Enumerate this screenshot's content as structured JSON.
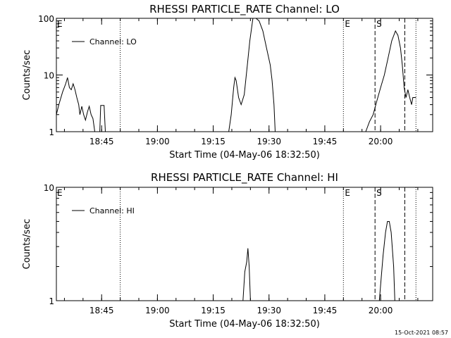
{
  "footer_timestamp": "15-Oct-2021 08:57",
  "chart_data": [
    {
      "type": "line",
      "title": "RHESSI PARTICLE_RATE Channel: LO",
      "xlabel": "Start Time (04-May-06 18:32:50)",
      "ylabel": "Counts/sec",
      "yscale": "log",
      "ylim": [
        1,
        100
      ],
      "yticks": [
        {
          "v": 1,
          "label": "1"
        },
        {
          "v": 10,
          "label": "10"
        },
        {
          "v": 100,
          "label": "100"
        }
      ],
      "xlim": [
        "18:32:50",
        "20:14:00"
      ],
      "xticks": [
        "18:45",
        "19:00",
        "19:15",
        "19:30",
        "19:45",
        "20:00"
      ],
      "legend": {
        "placement": "top-left",
        "label": "Channel: LO"
      },
      "markers": [
        {
          "time": "18:50:00",
          "style": "dotted",
          "label": ""
        },
        {
          "time": "19:50:00",
          "style": "dotted",
          "label": "E"
        },
        {
          "time": "19:58:30",
          "style": "dashed",
          "label": "S"
        },
        {
          "time": "20:06:30",
          "style": "dashed",
          "label": ""
        },
        {
          "time": "20:09:30",
          "style": "dotted",
          "label": ""
        }
      ],
      "edge_label": "E",
      "series": [
        {
          "name": "Channel: LO",
          "segments": [
            [
              [
                "18:32:50",
                2
              ],
              [
                "18:33:30",
                3
              ],
              [
                "18:34:30",
                5
              ],
              [
                "18:35:20",
                7
              ],
              [
                "18:35:50",
                9
              ],
              [
                "18:36:20",
                6
              ],
              [
                "18:36:50",
                5.5
              ],
              [
                "18:37:20",
                7
              ],
              [
                "18:37:50",
                5.5
              ],
              [
                "18:38:20",
                4
              ],
              [
                "18:38:50",
                3
              ],
              [
                "18:39:10",
                2
              ],
              [
                "18:39:40",
                2.8
              ],
              [
                "18:40:10",
                2
              ],
              [
                "18:40:40",
                1.6
              ],
              [
                "18:41:10",
                2.2
              ],
              [
                "18:41:40",
                2.8
              ],
              [
                "18:42:10",
                2
              ],
              [
                "18:42:40",
                1.7
              ],
              [
                "18:43:10",
                1
              ]
            ],
            [
              [
                "18:44:30",
                1
              ],
              [
                "18:44:45",
                2.9
              ],
              [
                "18:45:40",
                2.9
              ],
              [
                "18:46:00",
                1
              ]
            ],
            [
              [
                "19:19:10",
                1
              ],
              [
                "19:19:50",
                2
              ],
              [
                "19:20:30",
                6
              ],
              [
                "19:20:50",
                9
              ],
              [
                "19:21:10",
                8
              ],
              [
                "19:21:50",
                4
              ],
              [
                "19:22:30",
                3
              ],
              [
                "19:23:20",
                4.5
              ],
              [
                "19:24:10",
                15
              ],
              [
                "19:24:50",
                40
              ],
              [
                "19:25:40",
                100
              ],
              [
                "19:26:30",
                100
              ],
              [
                "19:27:20",
                90
              ],
              [
                "19:28:20",
                60
              ],
              [
                "19:29:20",
                30
              ],
              [
                "19:30:20",
                15
              ],
              [
                "19:30:50",
                8
              ],
              [
                "19:31:20",
                3
              ],
              [
                "19:31:40",
                1
              ]
            ],
            [
              [
                "19:56:00",
                1
              ],
              [
                "19:57:00",
                1.5
              ],
              [
                "19:58:00",
                2
              ],
              [
                "19:59:00",
                3.5
              ],
              [
                "20:00:00",
                6
              ],
              [
                "20:01:00",
                10
              ],
              [
                "20:02:00",
                20
              ],
              [
                "20:03:00",
                40
              ],
              [
                "20:04:00",
                60
              ],
              [
                "20:04:40",
                50
              ],
              [
                "20:05:20",
                30
              ],
              [
                "20:05:50",
                15
              ],
              [
                "20:06:20",
                6
              ],
              [
                "20:06:50",
                4
              ],
              [
                "20:07:20",
                5.5
              ],
              [
                "20:07:50",
                4
              ],
              [
                "20:08:20",
                3
              ],
              [
                "20:08:40",
                4
              ],
              [
                "20:09:30",
                4
              ]
            ]
          ]
        }
      ]
    },
    {
      "type": "line",
      "title": "RHESSI PARTICLE_RATE Channel: HI",
      "xlabel": "Start Time (04-May-06 18:32:50)",
      "ylabel": "Counts/sec",
      "yscale": "log",
      "ylim": [
        1,
        10
      ],
      "yticks": [
        {
          "v": 1,
          "label": "1"
        },
        {
          "v": 10,
          "label": "10"
        }
      ],
      "xlim": [
        "18:32:50",
        "20:14:00"
      ],
      "xticks": [
        "18:45",
        "19:00",
        "19:15",
        "19:30",
        "19:45",
        "20:00"
      ],
      "legend": {
        "placement": "top-left",
        "label": "Channel: HI"
      },
      "markers": [
        {
          "time": "18:50:00",
          "style": "dotted",
          "label": ""
        },
        {
          "time": "19:50:00",
          "style": "dotted",
          "label": "E"
        },
        {
          "time": "19:58:30",
          "style": "dashed",
          "label": "S"
        },
        {
          "time": "20:06:30",
          "style": "dashed",
          "label": ""
        },
        {
          "time": "20:09:30",
          "style": "dotted",
          "label": ""
        }
      ],
      "edge_label": "E",
      "series": [
        {
          "name": "Channel: HI",
          "segments": [
            [
              [
                "19:23:00",
                1
              ],
              [
                "19:23:30",
                1.8
              ],
              [
                "19:24:00",
                2.2
              ],
              [
                "19:24:20",
                2.9
              ],
              [
                "19:24:40",
                2
              ],
              [
                "19:25:00",
                1
              ]
            ],
            [
              [
                "19:59:40",
                1
              ],
              [
                "20:00:10",
                1.6
              ],
              [
                "20:00:40",
                2.5
              ],
              [
                "20:01:20",
                4
              ],
              [
                "20:01:50",
                5
              ],
              [
                "20:02:20",
                5
              ],
              [
                "20:02:50",
                4
              ],
              [
                "20:03:30",
                2
              ],
              [
                "20:03:50",
                1
              ]
            ]
          ]
        }
      ]
    }
  ]
}
